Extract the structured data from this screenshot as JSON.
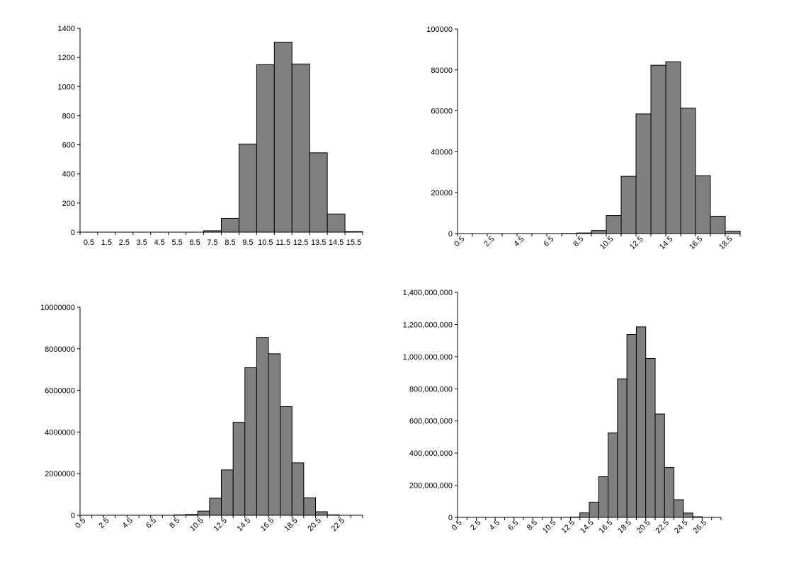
{
  "chart_data": [
    {
      "type": "bar",
      "x_start": 0.5,
      "x_step": 1,
      "categories": [
        "0.5",
        "1.5",
        "2.5",
        "3.5",
        "4.5",
        "5.5",
        "6.5",
        "7.5",
        "8.5",
        "9.5",
        "10.5",
        "11.5",
        "12.5",
        "13.5",
        "14.5",
        "15.5"
      ],
      "values": [
        0,
        0,
        0,
        0,
        0,
        0,
        0,
        10,
        95,
        605,
        1150,
        1305,
        1155,
        545,
        125,
        4
      ],
      "ylim": [
        0,
        1400
      ],
      "y_ticks": [
        "0",
        "200",
        "400",
        "600",
        "800",
        "1000",
        "1200",
        "1400"
      ],
      "x_tick_labels": [
        "0.5",
        "1.5",
        "2.5",
        "3.5",
        "4.5",
        "5.5",
        "6.5",
        "7.5",
        "8.5",
        "9.5",
        "10.5",
        "11.5",
        "12.5",
        "13.5",
        "14.5",
        "15.5"
      ],
      "x_label_rotated": false,
      "grid": false,
      "color": "#808080"
    },
    {
      "type": "bar",
      "x_start": 0.5,
      "x_step": 1,
      "categories": [
        "0.5",
        "1.5",
        "2.5",
        "3.5",
        "4.5",
        "5.5",
        "6.5",
        "7.5",
        "8.5",
        "9.5",
        "10.5",
        "11.5",
        "12.5",
        "13.5",
        "14.5",
        "15.5",
        "16.5",
        "17.5",
        "18.5"
      ],
      "values": [
        0,
        0,
        0,
        0,
        0,
        0,
        0,
        100,
        300,
        1500,
        8800,
        28000,
        58500,
        82300,
        84000,
        61300,
        28300,
        8500,
        1200
      ],
      "ylim": [
        0,
        100000
      ],
      "y_ticks": [
        "0",
        "20000",
        "40000",
        "60000",
        "80000",
        "100000"
      ],
      "x_tick_labels": [
        "0.5",
        "2.5",
        "4.5",
        "6.5",
        "8.5",
        "10.5",
        "12.5",
        "14.5",
        "16.5",
        "18.5"
      ],
      "x_label_rotated": true,
      "grid": false,
      "color": "#808080"
    },
    {
      "type": "bar",
      "x_start": 0.5,
      "x_step": 1,
      "categories": [
        "0.5",
        "1.5",
        "2.5",
        "3.5",
        "4.5",
        "5.5",
        "6.5",
        "7.5",
        "8.5",
        "9.5",
        "10.5",
        "11.5",
        "12.5",
        "13.5",
        "14.5",
        "15.5",
        "16.5",
        "17.5",
        "18.5",
        "19.5",
        "20.5",
        "21.5",
        "22.5",
        "23.5"
      ],
      "values": [
        0,
        0,
        0,
        0,
        0,
        0,
        0,
        0,
        20000,
        40000,
        200000,
        820000,
        2180000,
        4470000,
        7090000,
        8550000,
        7760000,
        5220000,
        2520000,
        840000,
        170000,
        20000,
        0,
        0
      ],
      "ylim": [
        0,
        10000000
      ],
      "y_ticks": [
        "0",
        "2000000",
        "4000000",
        "6000000",
        "8000000",
        "10000000"
      ],
      "x_tick_labels": [
        "0.5",
        "2.5",
        "4.5",
        "6.5",
        "8.5",
        "10.5",
        "12.5",
        "14.5",
        "16.5",
        "18.5",
        "20.5",
        "22.5"
      ],
      "x_label_rotated": true,
      "grid": false,
      "color": "#808080"
    },
    {
      "type": "bar",
      "x_start": 0.5,
      "x_step": 1,
      "categories": [
        "0.5",
        "1.5",
        "2.5",
        "3.5",
        "4.5",
        "5.5",
        "6.5",
        "7.5",
        "8.5",
        "9.5",
        "10.5",
        "11.5",
        "12.5",
        "13.5",
        "14.5",
        "15.5",
        "16.5",
        "17.5",
        "18.5",
        "19.5",
        "20.5",
        "21.5",
        "22.5",
        "23.5",
        "24.5",
        "25.5",
        "26.5",
        "27.5"
      ],
      "values": [
        0,
        0,
        0,
        0,
        0,
        0,
        0,
        0,
        0,
        0,
        0,
        0,
        2000000,
        28000000,
        95000000,
        253000000,
        525000000,
        862000000,
        1138000000,
        1185000000,
        988000000,
        643000000,
        310000000,
        110000000,
        27000000,
        4000000,
        0,
        0
      ],
      "ylim": [
        0,
        1400000000
      ],
      "y_ticks": [
        "0",
        "200,000,000",
        "400,000,000",
        "600,000,000",
        "800,000,000",
        "1,000,000,000",
        "1,200,000,000",
        "1,400,000,000"
      ],
      "x_tick_labels": [
        "0.5",
        "2.5",
        "4.5",
        "6.5",
        "8.5",
        "10.5",
        "12.5",
        "14.5",
        "16.5",
        "18.5",
        "20.5",
        "22.5",
        "24.5",
        "26.5"
      ],
      "x_label_rotated": true,
      "grid": false,
      "color": "#808080"
    }
  ]
}
